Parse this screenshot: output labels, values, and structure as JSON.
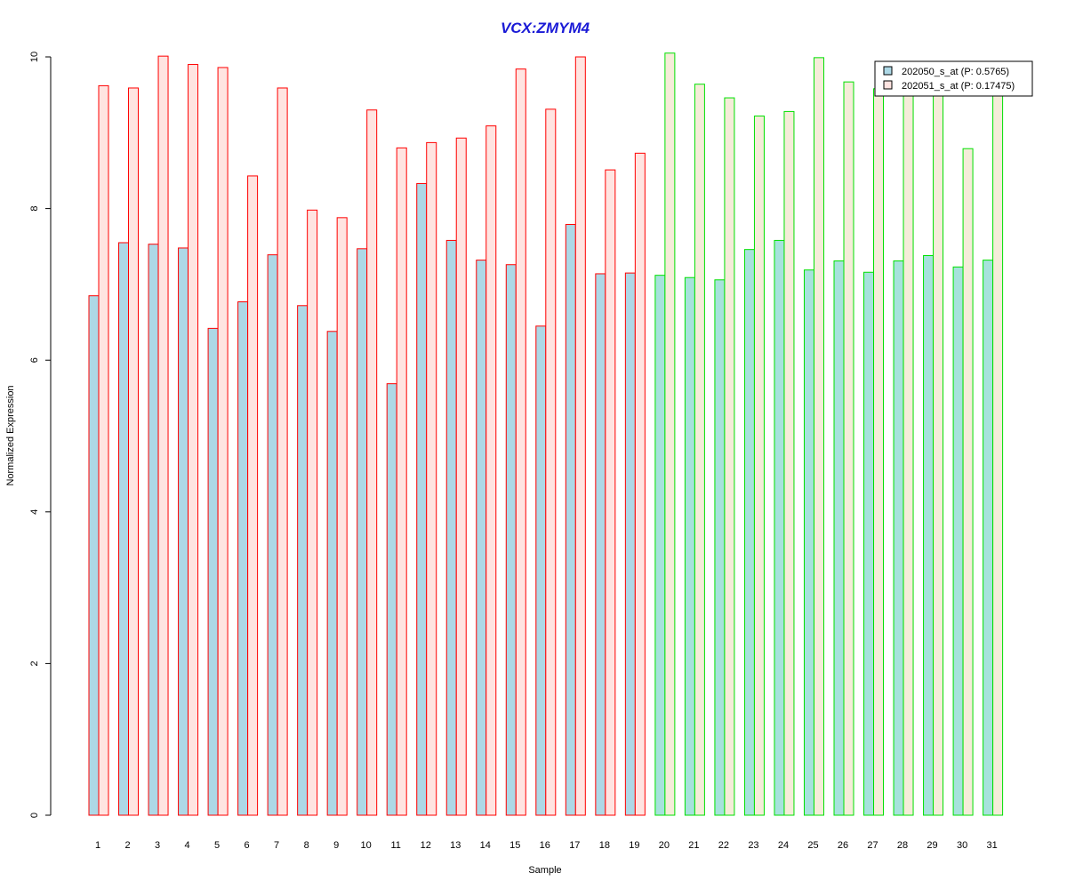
{
  "chart_data": {
    "type": "bar",
    "title": "VCX:ZMYM4",
    "xlabel": "Sample",
    "ylabel": "Normalized Expression",
    "ylim": [
      0,
      10
    ],
    "yticks": [
      "0",
      "2",
      "4",
      "6",
      "8",
      "10"
    ],
    "categories": [
      "1",
      "2",
      "3",
      "4",
      "5",
      "6",
      "7",
      "8",
      "9",
      "10",
      "11",
      "12",
      "13",
      "14",
      "15",
      "16",
      "17",
      "18",
      "19",
      "20",
      "21",
      "22",
      "23",
      "24",
      "25",
      "26",
      "27",
      "28",
      "29",
      "30",
      "31"
    ],
    "series": [
      {
        "name": "202050_s_at (P: 0.5765)",
        "values": [
          6.85,
          7.55,
          7.53,
          7.48,
          6.42,
          6.77,
          7.39,
          6.72,
          6.38,
          7.47,
          5.69,
          8.33,
          7.58,
          7.32,
          7.26,
          6.45,
          7.79,
          7.14,
          7.15,
          7.12,
          7.09,
          7.06,
          7.46,
          7.58,
          7.19,
          7.31,
          7.16,
          7.31,
          7.38,
          7.23,
          7.32
        ]
      },
      {
        "name": "202051_s_at (P: 0.17475)",
        "values": [
          9.62,
          9.59,
          10.01,
          9.9,
          9.86,
          8.43,
          9.59,
          7.98,
          7.88,
          9.3,
          8.8,
          8.87,
          8.93,
          9.09,
          9.84,
          9.31,
          10.0,
          8.51,
          8.73,
          10.05,
          9.64,
          9.46,
          9.22,
          9.28,
          9.99,
          9.67,
          9.58,
          9.61,
          9.6,
          8.79,
          9.59
        ]
      }
    ],
    "group_sizes": [
      19,
      12
    ],
    "legend_position": "top-right",
    "grid": false,
    "colors": {
      "title": "#1a1ad6",
      "series1_fill_group1": "#add8e6",
      "series1_fill_group2": "#a6e2dc",
      "series2_fill_group1": "#ffe4e1",
      "series2_fill_group2": "#f5ecd9",
      "border_group1": "#ff0000",
      "border_group2": "#00e000",
      "legend_swatch1": "#add8e6",
      "legend_swatch2": "#ffe4e1"
    }
  }
}
